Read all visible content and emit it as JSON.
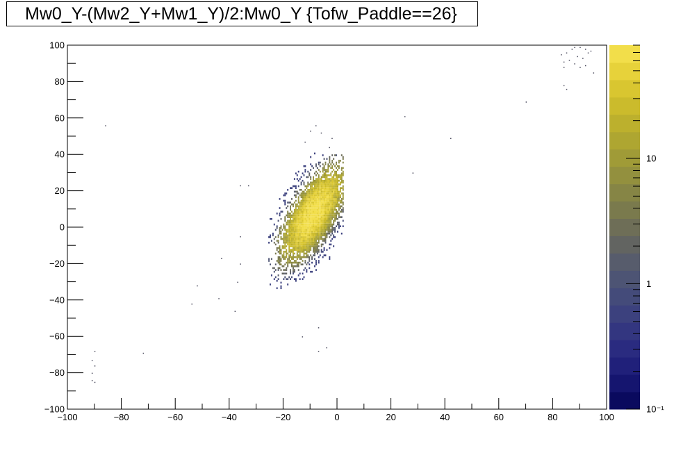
{
  "chart_data": {
    "type": "heatmap",
    "title": "Mw0_Y-(Mw2_Y+Mw1_Y)/2:Mw0_Y {Tofw_Paddle==26}",
    "xlabel": "",
    "ylabel": "",
    "xlim": [
      -100,
      100
    ],
    "ylim": [
      -100,
      100
    ],
    "x_ticks": [
      -100,
      -80,
      -60,
      -40,
      -20,
      0,
      20,
      40,
      60,
      80,
      100
    ],
    "y_ticks": [
      -100,
      -80,
      -60,
      -40,
      -20,
      0,
      20,
      40,
      60,
      80,
      100
    ],
    "x_tick_labels": [
      "−100",
      "−80",
      "−60",
      "−40",
      "−20",
      "0",
      "20",
      "40",
      "60",
      "80",
      "100"
    ],
    "y_tick_labels": [
      "−100",
      "−80",
      "−60",
      "−40",
      "−20",
      "0",
      "20",
      "40",
      "60",
      "80",
      "100"
    ],
    "z_scale": "log",
    "z_ticks": [
      0.1,
      1,
      10
    ],
    "z_tick_labels": [
      "10⁻¹",
      "1",
      "10"
    ],
    "z_range": [
      0.1,
      80
    ],
    "palette": [
      "#0a0a5e",
      "#15156f",
      "#20207a",
      "#2a2b80",
      "#333680",
      "#3c417e",
      "#444b7a",
      "#4d5474",
      "#575c6c",
      "#626461",
      "#6e6e57",
      "#7a7a4d",
      "#868545",
      "#93903e",
      "#a09b37",
      "#aea631",
      "#bcb02d",
      "#cbbb2c",
      "#d9c630",
      "#e7d23a",
      "#f2de4a"
    ],
    "core": {
      "x_center": -9,
      "y_center": 7,
      "x_sigma": 5.5,
      "y_sigma": 12,
      "correlation": 0.7,
      "peak_count": 80
    },
    "halo": {
      "x_center": -9,
      "y_center": 6,
      "x_sigma": 7,
      "y_sigma": 15,
      "correlation": 0.6
    },
    "stray_points": [
      [
        -86,
        56
      ],
      [
        -12,
        47
      ],
      [
        -3,
        44
      ],
      [
        -8,
        56
      ],
      [
        -10,
        53
      ],
      [
        -6,
        52
      ],
      [
        -2,
        49
      ],
      [
        25,
        61
      ],
      [
        42,
        49
      ],
      [
        70,
        69
      ],
      [
        28,
        30
      ],
      [
        -33,
        23
      ],
      [
        -36,
        23
      ],
      [
        -36,
        -20
      ],
      [
        -43,
        -17
      ],
      [
        -52,
        -32
      ],
      [
        -54,
        -42
      ],
      [
        -44,
        -39
      ],
      [
        -38,
        -46
      ],
      [
        -37,
        -30
      ],
      [
        -36,
        -5
      ],
      [
        -13,
        -60
      ],
      [
        -7,
        -55
      ],
      [
        -7,
        -68
      ],
      [
        -4,
        -66
      ],
      [
        -72,
        -69
      ],
      [
        -90,
        -68
      ],
      [
        -91,
        -73
      ],
      [
        -90,
        -76
      ],
      [
        -91,
        -80
      ],
      [
        -90,
        -85
      ],
      [
        -91,
        -84
      ],
      [
        85,
        76
      ],
      [
        84,
        78
      ],
      [
        83,
        95
      ],
      [
        85,
        96
      ],
      [
        87,
        98
      ],
      [
        88,
        99
      ],
      [
        90,
        99
      ],
      [
        92,
        98
      ],
      [
        94,
        97
      ],
      [
        89,
        94
      ],
      [
        91,
        93
      ],
      [
        86,
        92
      ],
      [
        88,
        90
      ],
      [
        84,
        91
      ],
      [
        90,
        88
      ],
      [
        92,
        89
      ],
      [
        84,
        88
      ],
      [
        95,
        85
      ],
      [
        93,
        96
      ]
    ]
  }
}
